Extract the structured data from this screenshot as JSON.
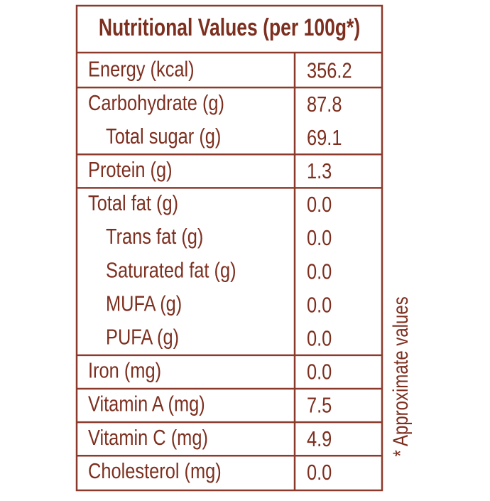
{
  "title": "Nutritional Values (per 100g*)",
  "groups": [
    [
      [
        "Energy (kcal)",
        "356.2"
      ]
    ],
    [
      [
        "Carbohydrate (g)",
        "87.8"
      ],
      [
        "Total sugar (g)",
        "69.1"
      ]
    ],
    [
      [
        "Protein (g)",
        "1.3"
      ]
    ],
    [
      [
        "Total fat (g)",
        "0.0"
      ],
      [
        "Trans fat (g)",
        "0.0"
      ],
      [
        "Saturated fat (g)",
        "0.0"
      ],
      [
        "MUFA (g)",
        "0.0"
      ],
      [
        "PUFA (g)",
        "0.0"
      ]
    ],
    [
      [
        "Iron (mg)",
        "0.0"
      ]
    ],
    [
      [
        "Vitamin A (mg)",
        "7.5"
      ]
    ],
    [
      [
        "Vitamin C (mg)",
        "4.9"
      ]
    ],
    [
      [
        "Cholesterol (mg)",
        "0.0"
      ]
    ]
  ],
  "note": "* Approximate values"
}
